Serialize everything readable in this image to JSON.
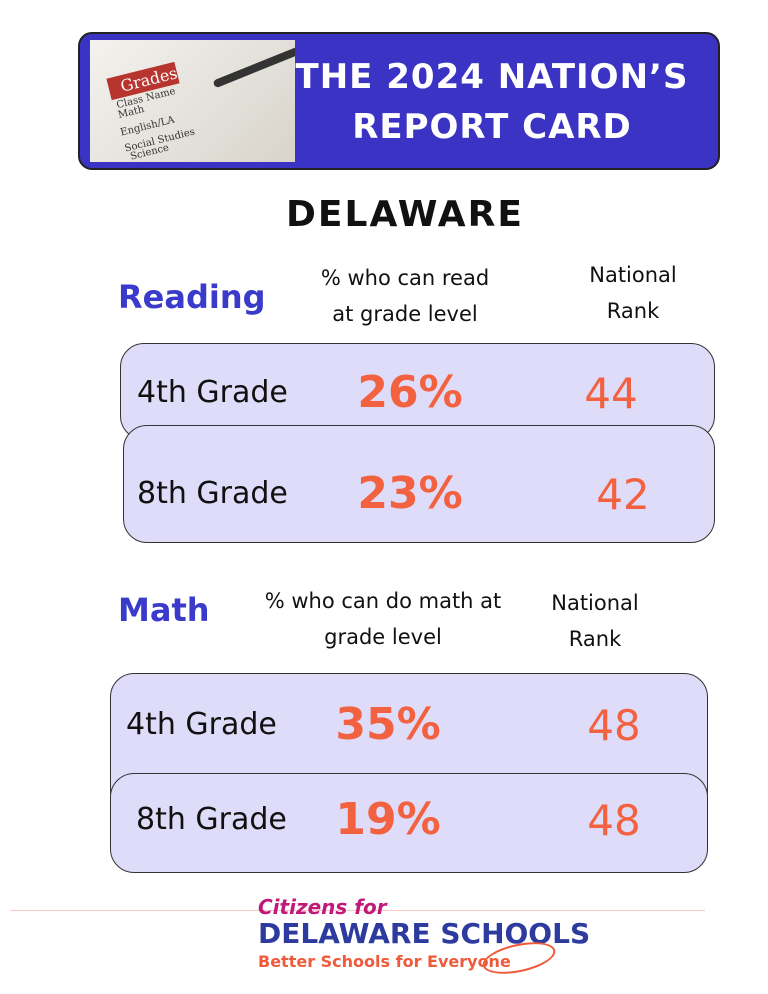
{
  "header": {
    "title": [
      "THE 2024 NATION’S",
      "REPORT CARD"
    ],
    "image_labels": [
      "Grades",
      "Class Name",
      "Math",
      "English/LA",
      "Social Studies",
      "Science"
    ]
  },
  "state": "DELAWARE",
  "sections": [
    {
      "subject": "Reading",
      "column_header": [
        "% who can read",
        "at grade level"
      ],
      "rank_header": [
        "National",
        "Rank"
      ],
      "rows": [
        {
          "grade": "4th Grade",
          "percent": "26%",
          "rank": 44
        },
        {
          "grade": "8th Grade",
          "percent": "23%",
          "rank": 42
        }
      ]
    },
    {
      "subject": "Math",
      "column_header": [
        "% who can do math at",
        "grade level"
      ],
      "rank_header": [
        "National",
        "Rank"
      ],
      "rows": [
        {
          "grade": "4th Grade",
          "percent": "35%",
          "rank": 48
        },
        {
          "grade": "8th Grade",
          "percent": "19%",
          "rank": 48
        }
      ]
    }
  ],
  "footer": {
    "line1": "Citizens for",
    "line2": "DELAWARE SCHOOLS",
    "line3": "Better Schools for Everyone"
  }
}
